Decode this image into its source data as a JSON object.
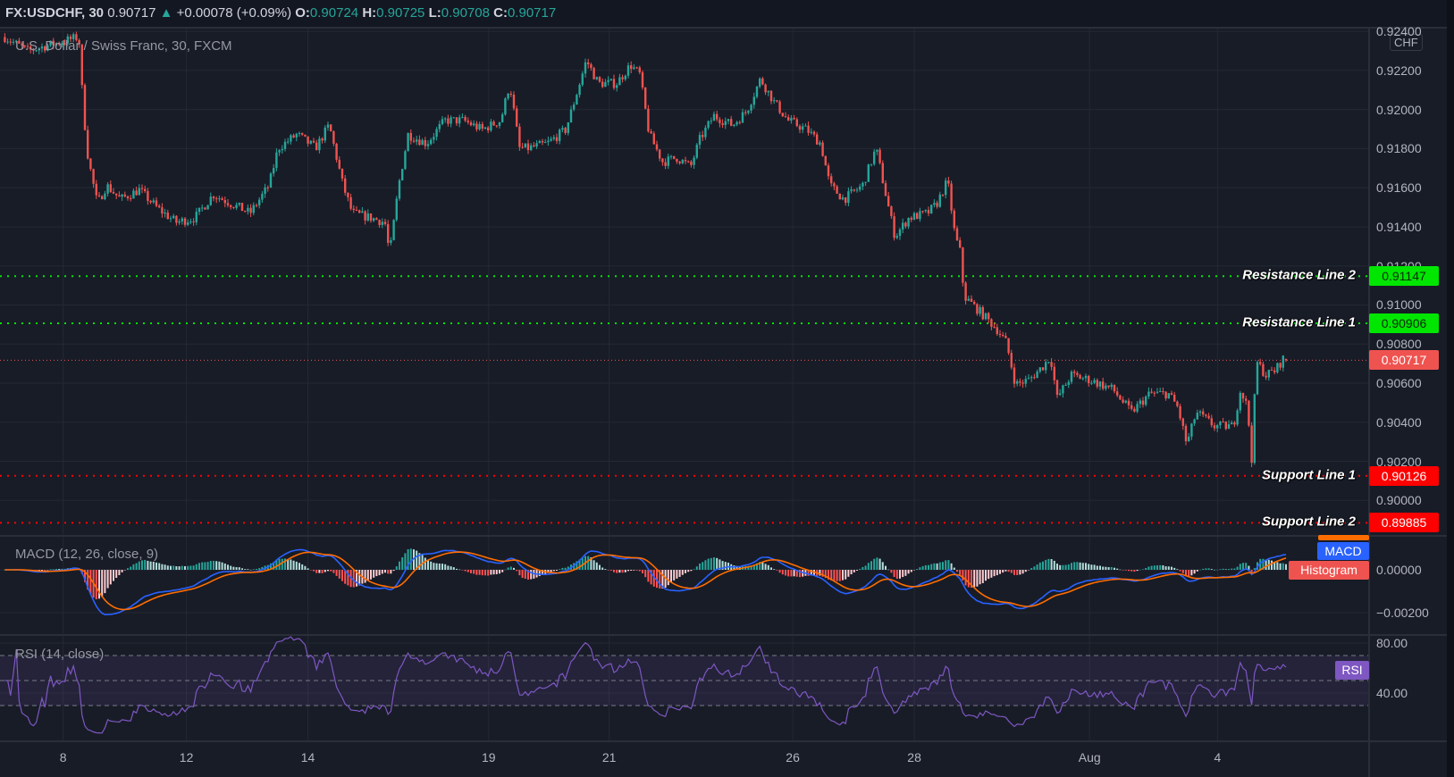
{
  "header": {
    "symbol": "FX:USDCHF, 30",
    "last": "0.90717",
    "change_arrow": "▲",
    "change": "+0.00078 (+0.09%)",
    "o_label": "O:",
    "o": "0.90724",
    "h_label": "H:",
    "h": "0.90725",
    "l_label": "L:",
    "l": "0.90708",
    "c_label": "C:",
    "c": "0.90717"
  },
  "chart_title": "U.S. Dollar / Swiss Franc, 30, FXCM",
  "currency_badge": "CHF",
  "colors": {
    "up": "#26a69a",
    "down": "#ef5350",
    "macd": "#2962ff",
    "signal": "#ff6d00",
    "rsi": "#7e57c2",
    "resistance": "#00e600",
    "support": "#ff0000",
    "last_price": "#ef5350"
  },
  "chart_data": {
    "type": "candlestick",
    "title": "U.S. Dollar / Swiss Franc, 30, FXCM",
    "x_unit": "day of month (July; Aug 1 = 32)",
    "x_ticks": [
      {
        "label": "8",
        "day": 8
      },
      {
        "label": "12",
        "day": 12
      },
      {
        "label": "14",
        "day": 14
      },
      {
        "label": "19",
        "day": 19
      },
      {
        "label": "21",
        "day": 21
      },
      {
        "label": "26",
        "day": 26
      },
      {
        "label": "28",
        "day": 28
      },
      {
        "label": "Aug",
        "day": 32
      },
      {
        "label": "4",
        "day": 35
      }
    ],
    "y_ticks": [
      "0.92400",
      "0.92200",
      "0.92000",
      "0.91800",
      "0.91600",
      "0.91400",
      "0.91200",
      "0.91000",
      "0.90800",
      "0.90600",
      "0.90400",
      "0.90200",
      "0.90000"
    ],
    "ylim": [
      0.8976,
      0.9242
    ],
    "grid": true,
    "close_path": [
      [
        6.11,
        0.92371
      ],
      [
        6.86,
        0.923
      ],
      [
        8.51,
        0.92371
      ],
      [
        8.66,
        0.91991
      ],
      [
        8.81,
        0.91754
      ],
      [
        9.11,
        0.91517
      ],
      [
        9.41,
        0.91612
      ],
      [
        9.86,
        0.91541
      ],
      [
        10.47,
        0.91589
      ],
      [
        11.07,
        0.91494
      ],
      [
        11.67,
        0.91423
      ],
      [
        12.14,
        0.91446
      ],
      [
        12.44,
        0.91565
      ],
      [
        12.75,
        0.91517
      ],
      [
        13.05,
        0.9147
      ],
      [
        13.36,
        0.91612
      ],
      [
        13.51,
        0.91802
      ],
      [
        13.82,
        0.91873
      ],
      [
        14.21,
        0.91802
      ],
      [
        14.59,
        0.9192
      ],
      [
        14.97,
        0.91612
      ],
      [
        15.23,
        0.9147
      ],
      [
        15.74,
        0.91446
      ],
      [
        16.13,
        0.91423
      ],
      [
        16.26,
        0.91257
      ],
      [
        16.51,
        0.91612
      ],
      [
        16.77,
        0.91873
      ],
      [
        17.28,
        0.91826
      ],
      [
        17.79,
        0.91944
      ],
      [
        18.31,
        0.91944
      ],
      [
        18.82,
        0.91897
      ],
      [
        19.2,
        0.91944
      ],
      [
        19.35,
        0.92134
      ],
      [
        19.51,
        0.91802
      ],
      [
        19.66,
        0.91802
      ],
      [
        19.97,
        0.91826
      ],
      [
        20.28,
        0.91897
      ],
      [
        20.51,
        0.92134
      ],
      [
        20.62,
        0.92252
      ],
      [
        20.82,
        0.92134
      ],
      [
        21.2,
        0.92134
      ],
      [
        21.58,
        0.92228
      ],
      [
        21.83,
        0.92181
      ],
      [
        22.09,
        0.91873
      ],
      [
        22.46,
        0.91731
      ],
      [
        22.84,
        0.91754
      ],
      [
        23.22,
        0.91707
      ],
      [
        23.47,
        0.91849
      ],
      [
        23.85,
        0.91968
      ],
      [
        24.36,
        0.9192
      ],
      [
        24.74,
        0.91991
      ],
      [
        25.12,
        0.92157
      ],
      [
        25.49,
        0.92039
      ],
      [
        25.87,
        0.91944
      ],
      [
        26.23,
        0.91897
      ],
      [
        26.46,
        0.91826
      ],
      [
        26.61,
        0.91612
      ],
      [
        26.84,
        0.91541
      ],
      [
        27.15,
        0.91612
      ],
      [
        27.37,
        0.91802
      ],
      [
        27.53,
        0.91565
      ],
      [
        27.68,
        0.91351
      ],
      [
        27.91,
        0.91446
      ],
      [
        28.3,
        0.9147
      ],
      [
        28.51,
        0.91517
      ],
      [
        28.76,
        0.91636
      ],
      [
        28.93,
        0.91351
      ],
      [
        29.04,
        0.9128
      ],
      [
        29.14,
        0.91043
      ],
      [
        29.57,
        0.90949
      ],
      [
        29.88,
        0.90878
      ],
      [
        30.1,
        0.90806
      ],
      [
        30.31,
        0.90593
      ],
      [
        30.62,
        0.90617
      ],
      [
        30.94,
        0.90688
      ],
      [
        31.11,
        0.90735
      ],
      [
        31.26,
        0.90522
      ],
      [
        31.58,
        0.90641
      ],
      [
        32.0,
        0.90617
      ],
      [
        32.54,
        0.90569
      ],
      [
        32.98,
        0.90451
      ],
      [
        33.41,
        0.90546
      ],
      [
        33.85,
        0.90546
      ],
      [
        34.07,
        0.90475
      ],
      [
        34.28,
        0.90285
      ],
      [
        34.5,
        0.90451
      ],
      [
        34.93,
        0.9038
      ],
      [
        35.37,
        0.9038
      ],
      [
        35.54,
        0.90569
      ],
      [
        35.7,
        0.90475
      ],
      [
        35.8,
        0.90214
      ],
      [
        35.91,
        0.90712
      ],
      [
        36.13,
        0.90641
      ],
      [
        36.35,
        0.90665
      ],
      [
        36.57,
        0.90735
      ],
      [
        36.67,
        0.90717
      ]
    ],
    "last_price": {
      "value": 0.90717,
      "label": "0.90717"
    },
    "levels": [
      {
        "name": "Resistance Line 2",
        "value": 0.91147,
        "label": "0.91147",
        "kind": "resistance"
      },
      {
        "name": "Resistance Line 1",
        "value": 0.90906,
        "label": "0.90906",
        "kind": "resistance"
      },
      {
        "name": "Support Line 1",
        "value": 0.90126,
        "label": "0.90126",
        "kind": "support"
      },
      {
        "name": "Support Line 2",
        "value": 0.89885,
        "label": "0.89885",
        "kind": "support"
      }
    ],
    "macd": {
      "title": "MACD (12, 26, close, 9)",
      "fast": 12,
      "slow": 26,
      "signal": 9,
      "y_ticks": [
        "0.00000",
        "−0.00200"
      ],
      "legend": [
        "MACD",
        "Histogram"
      ]
    },
    "rsi": {
      "title": "RSI (14, close)",
      "period": 14,
      "y_ticks": [
        "80.00",
        "40.00"
      ],
      "bands": [
        70,
        50,
        30
      ],
      "legend": "RSI"
    }
  }
}
